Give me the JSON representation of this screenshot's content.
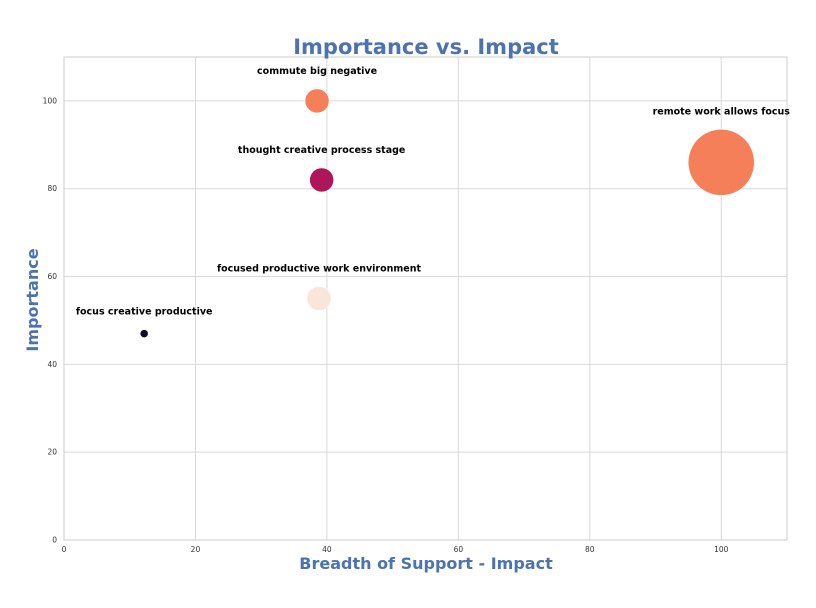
{
  "chart_data": {
    "type": "scatter",
    "title": "Importance vs. Impact",
    "xlabel": "Breadth of Support - Impact",
    "ylabel": "Importance",
    "xlim": [
      0,
      110
    ],
    "ylim": [
      0,
      110
    ],
    "xticks": [
      0,
      20,
      40,
      60,
      80,
      100
    ],
    "yticks": [
      0,
      20,
      40,
      60,
      80,
      100
    ],
    "grid": true,
    "points": [
      {
        "label": "commute big negative",
        "x": 38.5,
        "y": 100,
        "size": 12,
        "color": "#f47f59"
      },
      {
        "label": "thought creative process stage",
        "x": 39.2,
        "y": 82,
        "size": 12,
        "color": "#ad1759"
      },
      {
        "label": "remote work allows focus",
        "x": 100,
        "y": 86,
        "size": 33,
        "color": "#f47f59"
      },
      {
        "label": "focused productive work environment",
        "x": 38.8,
        "y": 55,
        "size": 12,
        "color": "#fae5d9"
      },
      {
        "label": "focus creative productive",
        "x": 12.2,
        "y": 47,
        "size": 4,
        "color": "#0e0a26"
      }
    ],
    "colors": {
      "title": "#4c72b0",
      "axis_label": "#4c72b0",
      "grid": "#d9d9d9",
      "spine": "#cccccc"
    }
  }
}
